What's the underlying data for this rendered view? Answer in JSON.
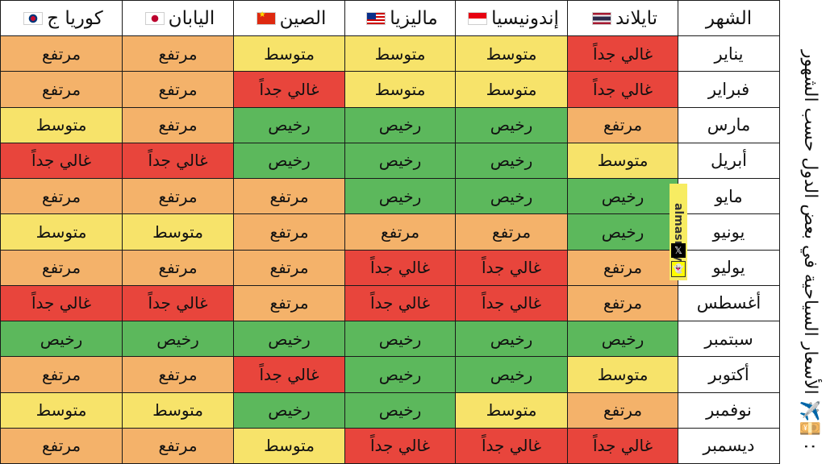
{
  "colors": {
    "cheap": "#5cb85c",
    "medium": "#f7e36a",
    "high": "#f4b26a",
    "very_high": "#e8453c"
  },
  "side_title": "الأسعار السياحية في بعض الدول حسب الشهور ✈️💴:",
  "watermark": {
    "handle": "almasrhy",
    "x_icon": "x-logo-icon",
    "snap_icon": "snapchat-ghost-icon"
  },
  "table": {
    "month_header": "الشهر",
    "countries": [
      {
        "name": "تايلاند",
        "flag": "flag-th"
      },
      {
        "name": "إندونيسيا",
        "flag": "flag-id"
      },
      {
        "name": "ماليزيا",
        "flag": "flag-my"
      },
      {
        "name": "الصين",
        "flag": "flag-cn"
      },
      {
        "name": "اليابان",
        "flag": "flag-jp"
      },
      {
        "name": "كوريا ج",
        "flag": "flag-kr"
      }
    ],
    "levels": {
      "cheap": "رخيص",
      "medium": "متوسط",
      "high": "مرتفع",
      "very_high": "غالي جداً"
    },
    "rows": [
      {
        "month": "يناير",
        "values": [
          "very_high",
          "medium",
          "medium",
          "medium",
          "high",
          "high"
        ]
      },
      {
        "month": "فبراير",
        "values": [
          "very_high",
          "medium",
          "medium",
          "very_high",
          "high",
          "high"
        ]
      },
      {
        "month": "مارس",
        "values": [
          "high",
          "cheap",
          "cheap",
          "cheap",
          "high",
          "medium"
        ]
      },
      {
        "month": "أبريل",
        "values": [
          "medium",
          "cheap",
          "cheap",
          "cheap",
          "very_high",
          "very_high"
        ]
      },
      {
        "month": "مايو",
        "values": [
          "cheap",
          "cheap",
          "cheap",
          "high",
          "high",
          "high"
        ]
      },
      {
        "month": "يونيو",
        "values": [
          "cheap",
          "high",
          "high",
          "high",
          "medium",
          "medium"
        ]
      },
      {
        "month": "يوليو",
        "values": [
          "high",
          "very_high",
          "very_high",
          "high",
          "high",
          "high"
        ]
      },
      {
        "month": "أغسطس",
        "values": [
          "high",
          "very_high",
          "very_high",
          "high",
          "very_high",
          "very_high"
        ]
      },
      {
        "month": "سبتمبر",
        "values": [
          "cheap",
          "cheap",
          "cheap",
          "cheap",
          "cheap",
          "cheap"
        ]
      },
      {
        "month": "أكتوبر",
        "values": [
          "medium",
          "cheap",
          "cheap",
          "very_high",
          "high",
          "high"
        ]
      },
      {
        "month": "نوفمبر",
        "values": [
          "high",
          "medium",
          "cheap",
          "cheap",
          "medium",
          "medium"
        ]
      },
      {
        "month": "ديسمبر",
        "values": [
          "very_high",
          "very_high",
          "very_high",
          "medium",
          "high",
          "high"
        ]
      }
    ]
  }
}
